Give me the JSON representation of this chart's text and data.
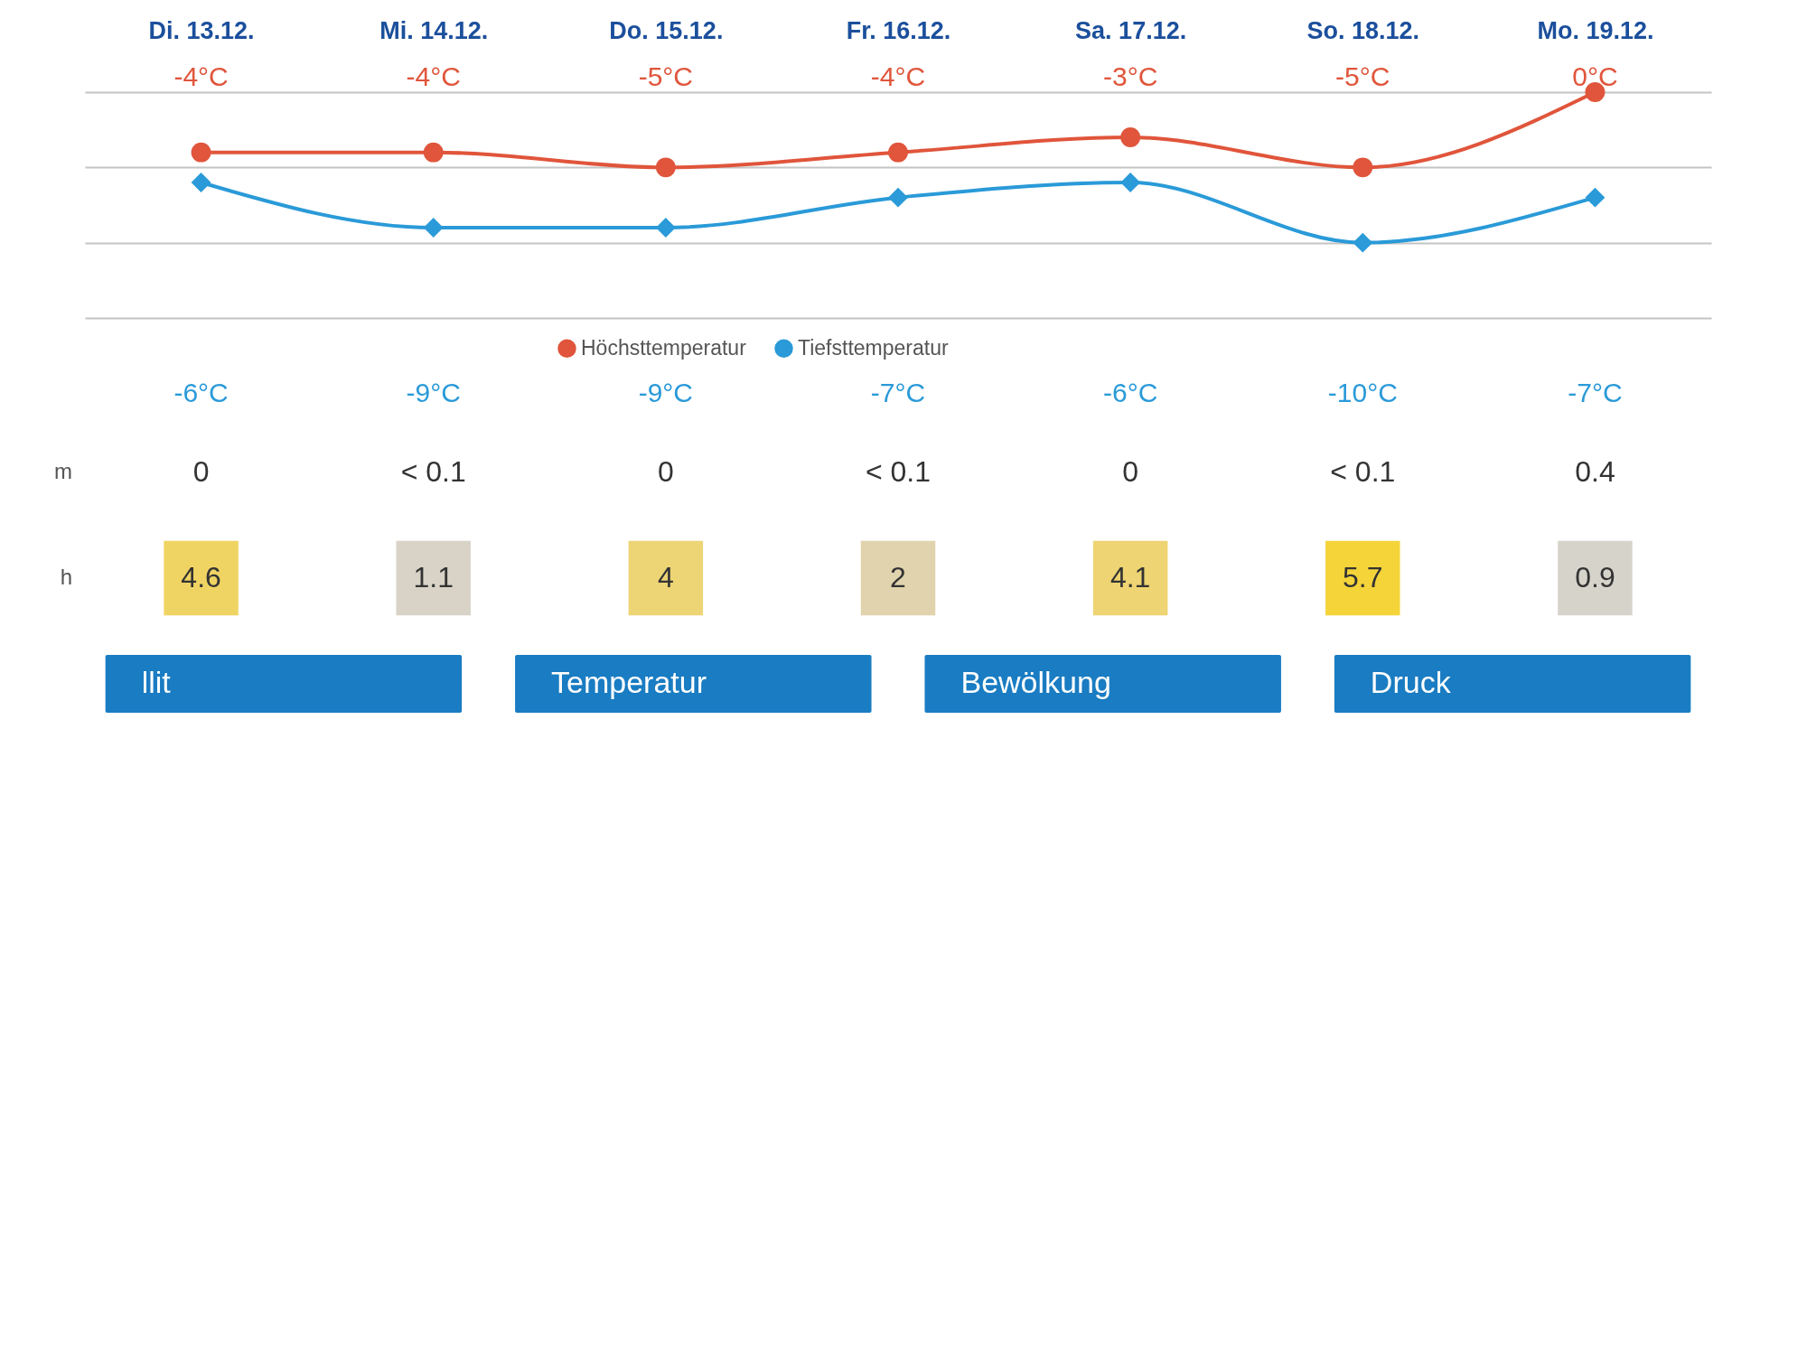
{
  "chart_data": [
    {
      "type": "line",
      "categories": [
        "Di. 13.12.",
        "Mi. 14.12.",
        "Do. 15.12.",
        "Fr. 16.12.",
        "Sa. 17.12.",
        "So. 18.12.",
        "Mo. 19.12."
      ],
      "series": [
        {
          "name": "Höchsttemperatur",
          "color": "#e0553b",
          "marker": "circle",
          "values": [
            -4,
            -4,
            -5,
            -4,
            -3,
            -5,
            0
          ],
          "value_labels": [
            "-4°C",
            "-4°C",
            "-5°C",
            "-4°C",
            "-3°C",
            "-5°C",
            "0°C"
          ]
        },
        {
          "name": "Tiefsttemperatur",
          "color": "#2a9ad8",
          "marker": "diamond",
          "values": [
            -6,
            -9,
            -9,
            -7,
            -6,
            -10,
            -7
          ],
          "value_labels": [
            "-6°C",
            "-9°C",
            "-9°C",
            "-7°C",
            "-6°C",
            "-10°C",
            "-7°C"
          ]
        }
      ],
      "ylim": [
        -15,
        0
      ],
      "yticks": [
        {
          "value": -15,
          "label": null
        },
        {
          "value": -10,
          "label": null
        },
        {
          "value": -5,
          "label": null
        },
        {
          "value": 0,
          "label": null
        }
      ],
      "grid": "y",
      "tick_labels": "x",
      "legend": "bottom",
      "line_style": "solid"
    },
    {
      "type": "other",
      "ylabel": "m",
      "annotations": [
        "0",
        "< 0.1",
        "0",
        "< 0.1",
        "0",
        "< 0.1",
        "0.4"
      ]
    },
    {
      "type": "heatmap",
      "categories": [
        null,
        null,
        null,
        null,
        null,
        null,
        null
      ],
      "y_categories": [
        null
      ],
      "ylabel": "h",
      "cells": [
        [
          4.6,
          1.1,
          4,
          2,
          4.1,
          5.7,
          0.9
        ]
      ],
      "data_labels": true
    },
    {
      "type": "other",
      "colors": [
        "#1a7cc2",
        "#1a7cc2",
        "#1a7cc2",
        "#1a7cc2"
      ],
      "annotations": [
        "llit",
        "Temperatur",
        "Bewölkung",
        "Druck"
      ]
    }
  ]
}
